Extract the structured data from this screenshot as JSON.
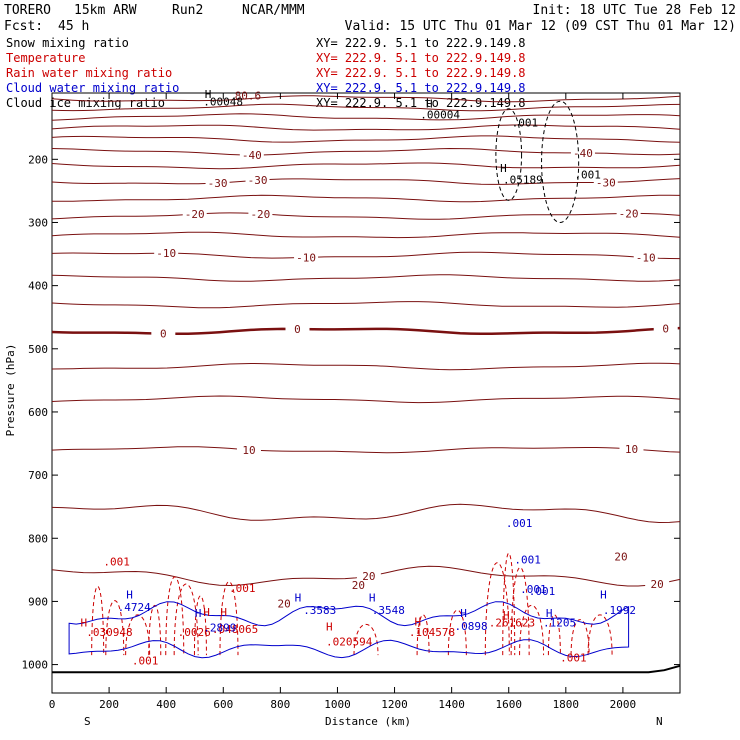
{
  "header": {
    "model": "TORERO",
    "resolution": "15km ARW",
    "run": "Run2",
    "org": "NCAR/MMM",
    "init": "Init: 18 UTC Tue 28 Feb 12",
    "fcst_label": "Fcst:",
    "fcst_value": "45 h",
    "valid": "Valid: 15 UTC Thu 01 Mar 12 (09 CST Thu 01 Mar 12)"
  },
  "legend": [
    {
      "name": "Snow mixing ratio",
      "color": "#000000",
      "xy": "XY= 222.9.  5.1 to 222.9.149.8"
    },
    {
      "name": "Temperature",
      "color": "#cc0000",
      "xy": "XY= 222.9.  5.1 to 222.9.149.8"
    },
    {
      "name": "Rain water mixing ratio",
      "color": "#cc0000",
      "xy": "XY= 222.9.  5.1 to 222.9.149.8"
    },
    {
      "name": "Cloud water mixing ratio",
      "color": "#0000cc",
      "xy": "XY= 222.9.  5.1 to 222.9.149.8"
    },
    {
      "name": "Cloud ice mixing ratio",
      "color": "#000000",
      "xy": "XY= 222.9.  5.1 to 222.9.149.8"
    }
  ],
  "chart_data": {
    "type": "contour",
    "xlabel": "Distance (km)",
    "ylabel": "Pressure (hPa)",
    "xlim": [
      0,
      2200
    ],
    "ylim": [
      1045,
      95
    ],
    "x_ticks": [
      0,
      200,
      400,
      600,
      800,
      1000,
      1200,
      1400,
      1600,
      1800,
      2000
    ],
    "y_ticks": [
      200,
      300,
      400,
      500,
      600,
      700,
      800,
      900,
      1000
    ],
    "left_end": "S",
    "right_end": "N",
    "colors": {
      "temperature": "#7a1010",
      "rain": "#cc0000",
      "cloud_water": "#0000cc",
      "ice": "#000000"
    },
    "isotherms": [
      {
        "p": 104,
        "label": "",
        "bold": false
      },
      {
        "p": 118,
        "label": "",
        "bold": false
      },
      {
        "p": 133,
        "label": "",
        "bold": false
      },
      {
        "p": 150,
        "label": "",
        "bold": false
      },
      {
        "p": 168,
        "label": "",
        "bold": false
      },
      {
        "p": 188,
        "label": "-40",
        "bold": false,
        "lx": [
          700,
          1860
        ]
      },
      {
        "p": 210,
        "label": "",
        "bold": false
      },
      {
        "p": 235,
        "label": "-30",
        "bold": false,
        "lx": [
          580,
          720,
          1940
        ]
      },
      {
        "p": 262,
        "label": "",
        "bold": false
      },
      {
        "p": 290,
        "label": "-20",
        "bold": false,
        "lx": [
          500,
          730,
          2020
        ]
      },
      {
        "p": 320,
        "label": "",
        "bold": false
      },
      {
        "p": 352,
        "label": "-10",
        "bold": false,
        "lx": [
          400,
          890,
          2080
        ]
      },
      {
        "p": 388,
        "label": "",
        "bold": false
      },
      {
        "p": 430,
        "label": "",
        "bold": false
      },
      {
        "p": 472,
        "label": "0",
        "bold": true,
        "lx": [
          390,
          860,
          2150
        ]
      },
      {
        "p": 528,
        "label": "",
        "bold": false
      },
      {
        "p": 580,
        "label": "",
        "bold": false
      },
      {
        "p": 660,
        "label": "10",
        "bold": false,
        "lx": [
          690,
          2030
        ]
      },
      {
        "p": 760,
        "label": "",
        "bold": false
      },
      {
        "p": 860,
        "label": "20",
        "bold": false,
        "lx": [
          1110,
          2120
        ]
      }
    ],
    "contour_labels": [
      {
        "x": 640,
        "p": 105,
        "text": "80.6",
        "color": "#7a1010"
      },
      {
        "x": 530,
        "p": 115,
        "text": ".00048",
        "color": "#000000"
      },
      {
        "x": 1290,
        "p": 135,
        "text": ".00004",
        "color": "#000000"
      },
      {
        "x": 1610,
        "p": 148,
        "text": ".001",
        "color": "#000000"
      },
      {
        "x": 1580,
        "p": 238,
        "text": ".05189",
        "color": "#000000"
      },
      {
        "x": 1830,
        "p": 230,
        "text": ".001",
        "color": "#000000"
      },
      {
        "x": 1590,
        "p": 782,
        "text": ".001",
        "color": "#0000cc"
      },
      {
        "x": 1620,
        "p": 840,
        "text": ".001",
        "color": "#0000cc"
      },
      {
        "x": 1640,
        "p": 887,
        "text": ".001",
        "color": "#0000cc"
      },
      {
        "x": 180,
        "p": 843,
        "text": ".001",
        "color": "#cc0000"
      },
      {
        "x": 620,
        "p": 885,
        "text": ".001",
        "color": "#cc0000"
      },
      {
        "x": 790,
        "p": 910,
        "text": "20",
        "color": "#7a1010"
      },
      {
        "x": 1970,
        "p": 835,
        "text": "20",
        "color": "#7a1010"
      },
      {
        "x": 1050,
        "p": 880,
        "text": "20",
        "color": "#7a1010"
      },
      {
        "x": 120,
        "p": 955,
        "text": ".030948",
        "color": "#cc0000"
      },
      {
        "x": 280,
        "p": 1000,
        "text": ".001",
        "color": "#cc0000"
      },
      {
        "x": 440,
        "p": 955,
        "text": ".0026",
        "color": "#cc0000"
      },
      {
        "x": 560,
        "p": 950,
        "text": ".048065",
        "color": "#cc0000"
      },
      {
        "x": 960,
        "p": 970,
        "text": ".020594",
        "color": "#cc0000"
      },
      {
        "x": 1250,
        "p": 955,
        "text": ".104578",
        "color": "#cc0000"
      },
      {
        "x": 1530,
        "p": 940,
        "text": ".261623",
        "color": "#cc0000"
      },
      {
        "x": 1780,
        "p": 995,
        "text": ".001",
        "color": "#cc0000"
      },
      {
        "x": 230,
        "p": 915,
        "text": ".4724",
        "color": "#0000cc"
      },
      {
        "x": 530,
        "p": 948,
        "text": ".2899",
        "color": "#0000cc"
      },
      {
        "x": 880,
        "p": 920,
        "text": ".3583",
        "color": "#0000cc"
      },
      {
        "x": 1120,
        "p": 920,
        "text": ".3548",
        "color": "#0000cc"
      },
      {
        "x": 1410,
        "p": 945,
        "text": ".0898",
        "color": "#0000cc"
      },
      {
        "x": 1720,
        "p": 940,
        "text": ".1205",
        "color": "#0000cc"
      },
      {
        "x": 1930,
        "p": 920,
        "text": ".1992",
        "color": "#0000cc"
      },
      {
        "x": 1670,
        "p": 890,
        "text": ".001",
        "color": "#0000cc"
      }
    ],
    "highs": [
      {
        "x": 535,
        "p": 103,
        "color": "#000000"
      },
      {
        "x": 1310,
        "p": 118,
        "color": "#000000"
      },
      {
        "x": 1570,
        "p": 220,
        "color": "#000000"
      },
      {
        "x": 100,
        "p": 940,
        "color": "#cc0000"
      },
      {
        "x": 530,
        "p": 923,
        "color": "#cc0000"
      },
      {
        "x": 590,
        "p": 923,
        "color": "#cc0000"
      },
      {
        "x": 960,
        "p": 946,
        "color": "#cc0000"
      },
      {
        "x": 1270,
        "p": 938,
        "color": "#cc0000"
      },
      {
        "x": 1580,
        "p": 928,
        "color": "#cc0000"
      },
      {
        "x": 260,
        "p": 895,
        "color": "#0000cc"
      },
      {
        "x": 500,
        "p": 925,
        "color": "#0000cc"
      },
      {
        "x": 850,
        "p": 900,
        "color": "#0000cc"
      },
      {
        "x": 1110,
        "p": 900,
        "color": "#0000cc"
      },
      {
        "x": 1430,
        "p": 925,
        "color": "#0000cc"
      },
      {
        "x": 1730,
        "p": 925,
        "color": "#0000cc"
      },
      {
        "x": 1920,
        "p": 895,
        "color": "#0000cc"
      }
    ],
    "ice_contours": [
      {
        "x": 1600,
        "ptop": 120,
        "pbot": 265,
        "w": 90
      },
      {
        "x": 1780,
        "ptop": 108,
        "pbot": 300,
        "w": 130
      }
    ]
  }
}
